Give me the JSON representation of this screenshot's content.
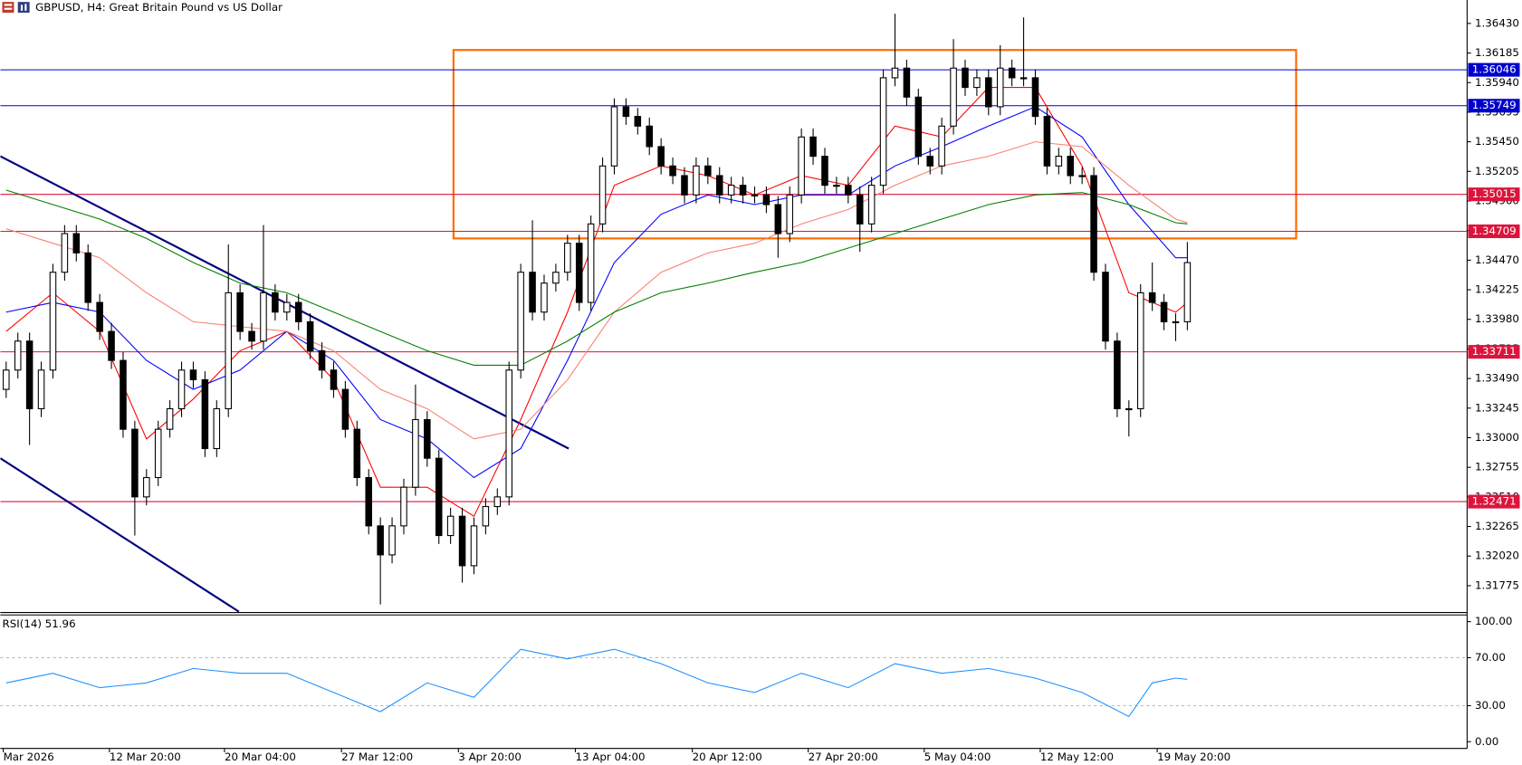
{
  "chart_data": {
    "type": "candlestick",
    "title": "GBPUSD, H4:  Great Britain Pound vs US Dollar",
    "open": [
      1.334,
      1.3356,
      1.338,
      1.3324,
      1.3356,
      1.3437,
      1.3469,
      1.3453,
      1.3412,
      1.3388,
      1.3364,
      1.3307,
      1.3251,
      1.3267,
      1.3307,
      1.3324,
      1.3356,
      1.3348,
      1.3291,
      1.3324,
      1.342,
      1.3388,
      1.338,
      1.342,
      1.3404,
      1.3412,
      1.3396,
      1.3372,
      1.3356,
      1.334,
      1.3307,
      1.3267,
      1.3227,
      1.3203,
      1.3227,
      1.3259,
      1.3315,
      1.3283,
      1.3219,
      1.3235,
      1.3194,
      1.3227,
      1.3243,
      1.3251,
      1.3356,
      1.3437,
      1.3404,
      1.3428,
      1.3437,
      1.3461,
      1.3412,
      1.3477,
      1.3525,
      1.3574,
      1.3566,
      1.3558,
      1.3541,
      1.3525,
      1.3517,
      1.3501,
      1.3525,
      1.3517,
      1.3501,
      1.3509,
      1.3501,
      1.3501,
      1.3493,
      1.3469,
      1.3501,
      1.3549,
      1.3533,
      1.3509,
      1.3509,
      1.3501,
      1.3477,
      1.3509,
      1.3598,
      1.3606,
      1.3582,
      1.3533,
      1.3525,
      1.3558,
      1.3606,
      1.359,
      1.3598,
      1.3574,
      1.3606,
      1.3598,
      1.3598,
      1.3566,
      1.3525,
      1.3533,
      1.3517,
      1.3517,
      1.3437,
      1.338,
      1.3324,
      1.3324,
      1.342,
      1.3412,
      1.3396,
      1.3396
    ],
    "high": [
      1.3363,
      1.3387,
      1.3387,
      1.3363,
      1.3444,
      1.3476,
      1.3476,
      1.346,
      1.3419,
      1.3395,
      1.3371,
      1.3314,
      1.3274,
      1.3314,
      1.3331,
      1.3363,
      1.3363,
      1.3355,
      1.3331,
      1.346,
      1.3427,
      1.3395,
      1.3476,
      1.3427,
      1.3419,
      1.3419,
      1.3403,
      1.3379,
      1.3363,
      1.3347,
      1.3314,
      1.3274,
      1.3234,
      1.3234,
      1.3266,
      1.3344,
      1.3322,
      1.329,
      1.3242,
      1.3242,
      1.3234,
      1.325,
      1.3258,
      1.3363,
      1.3444,
      1.348,
      1.3435,
      1.3444,
      1.3468,
      1.3468,
      1.3484,
      1.3532,
      1.3581,
      1.3581,
      1.3573,
      1.3565,
      1.3548,
      1.3532,
      1.3524,
      1.3532,
      1.3532,
      1.3524,
      1.3516,
      1.3516,
      1.3508,
      1.3508,
      1.35,
      1.3508,
      1.3556,
      1.3556,
      1.354,
      1.3516,
      1.3516,
      1.3508,
      1.3516,
      1.3605,
      1.3651,
      1.3613,
      1.3589,
      1.354,
      1.3565,
      1.363,
      1.3613,
      1.3605,
      1.3605,
      1.3625,
      1.3613,
      1.3648,
      1.3605,
      1.3573,
      1.354,
      1.354,
      1.3524,
      1.3524,
      1.3444,
      1.3387,
      1.3331,
      1.3427,
      1.3445,
      1.3419,
      1.3403,
      1.3462
    ],
    "low": [
      1.3333,
      1.3349,
      1.3294,
      1.3317,
      1.3349,
      1.343,
      1.3446,
      1.3405,
      1.3381,
      1.3357,
      1.33,
      1.3219,
      1.3244,
      1.326,
      1.33,
      1.3317,
      1.3341,
      1.3284,
      1.3284,
      1.3317,
      1.3381,
      1.3373,
      1.3373,
      1.3397,
      1.3397,
      1.3389,
      1.3365,
      1.3349,
      1.3333,
      1.33,
      1.326,
      1.322,
      1.3162,
      1.3196,
      1.322,
      1.3252,
      1.3276,
      1.3212,
      1.3212,
      1.318,
      1.3187,
      1.322,
      1.3236,
      1.3244,
      1.3349,
      1.3397,
      1.3397,
      1.3421,
      1.343,
      1.3405,
      1.3405,
      1.347,
      1.3518,
      1.3559,
      1.3551,
      1.3534,
      1.3518,
      1.351,
      1.3494,
      1.3494,
      1.351,
      1.3494,
      1.3494,
      1.3494,
      1.3494,
      1.3486,
      1.3449,
      1.3462,
      1.3494,
      1.3526,
      1.3502,
      1.3502,
      1.3494,
      1.3454,
      1.347,
      1.3502,
      1.3591,
      1.3575,
      1.3526,
      1.3518,
      1.3518,
      1.3551,
      1.3583,
      1.3583,
      1.3567,
      1.3567,
      1.3591,
      1.3591,
      1.3559,
      1.3518,
      1.3518,
      1.351,
      1.351,
      1.343,
      1.3373,
      1.3317,
      1.3301,
      1.3317,
      1.3405,
      1.3389,
      1.338,
      1.3389
    ],
    "close": [
      1.3356,
      1.338,
      1.3324,
      1.3356,
      1.3437,
      1.3469,
      1.3453,
      1.3412,
      1.3388,
      1.3364,
      1.3307,
      1.3251,
      1.3267,
      1.3307,
      1.3324,
      1.3356,
      1.3348,
      1.3291,
      1.3324,
      1.342,
      1.3388,
      1.338,
      1.342,
      1.3404,
      1.3412,
      1.3396,
      1.3372,
      1.3356,
      1.334,
      1.3307,
      1.3267,
      1.3227,
      1.3203,
      1.3227,
      1.3259,
      1.3315,
      1.3283,
      1.3219,
      1.3235,
      1.3194,
      1.3227,
      1.3243,
      1.3251,
      1.3356,
      1.3437,
      1.3404,
      1.3428,
      1.3437,
      1.3461,
      1.3412,
      1.3477,
      1.3525,
      1.3574,
      1.3566,
      1.3558,
      1.3541,
      1.3525,
      1.3517,
      1.3501,
      1.3525,
      1.3517,
      1.3501,
      1.3509,
      1.3501,
      1.3501,
      1.3493,
      1.3469,
      1.3501,
      1.3549,
      1.3533,
      1.3509,
      1.3509,
      1.3501,
      1.3477,
      1.3509,
      1.3598,
      1.3606,
      1.3582,
      1.3533,
      1.3525,
      1.3558,
      1.3606,
      1.359,
      1.3598,
      1.3574,
      1.3606,
      1.3598,
      1.3598,
      1.3566,
      1.3525,
      1.3533,
      1.3517,
      1.3517,
      1.3437,
      1.338,
      1.3324,
      1.3324,
      1.342,
      1.3412,
      1.3396,
      1.3396,
      1.3445
    ],
    "xlim": [
      -0.5,
      124.92
    ],
    "xticks": [
      {
        "value": -0.25,
        "label": "Mar 2026"
      },
      {
        "value": 8.83,
        "label": "12 Mar 20:00"
      },
      {
        "value": 18.67,
        "label": "20 Mar 04:00"
      },
      {
        "value": 28.67,
        "label": "27 Mar 12:00"
      },
      {
        "value": 38.67,
        "label": "3 Apr 20:00"
      },
      {
        "value": 48.67,
        "label": "13 Apr 04:00"
      },
      {
        "value": 58.67,
        "label": "20 Apr 12:00"
      },
      {
        "value": 68.58,
        "label": "27 Apr 20:00"
      },
      {
        "value": 78.5,
        "label": "5 May 04:00"
      },
      {
        "value": 88.42,
        "label": "12 May 12:00"
      },
      {
        "value": 98.42,
        "label": "19 May 20:00"
      }
    ],
    "ylim": [
      1.31557,
      1.36624
    ],
    "yticks": [
      {
        "value": 1.3643,
        "label": "1.36430"
      },
      1.36185,
      {
        "value": 1.3594,
        "label": "1.35940"
      },
      1.35695,
      {
        "value": 1.3545,
        "label": "1.35450"
      },
      1.35205,
      {
        "value": 1.3496,
        "label": "1.34960"
      },
      1.34715,
      {
        "value": 1.3447,
        "label": "1.34470"
      },
      1.34225,
      {
        "value": 1.3398,
        "label": "1.33980"
      },
      1.33735,
      {
        "value": 1.3349,
        "label": "1.33490"
      },
      1.33245,
      {
        "value": 1.33,
        "label": "1.33000"
      },
      1.32755,
      {
        "value": 1.3251,
        "label": "1.32510"
      },
      1.32265,
      {
        "value": 1.3202,
        "label": "1.32020"
      },
      1.31775
    ],
    "moving_averages": [
      {
        "color": "#ff0000",
        "x": [
          0,
          4,
          8,
          12,
          16,
          20,
          24,
          28,
          32,
          36,
          40,
          44,
          48,
          52,
          56,
          60,
          64,
          68,
          72,
          76,
          80,
          84,
          88,
          92,
          96,
          100,
          101
        ],
        "values": [
          1.3388,
          1.342,
          1.3388,
          1.3299,
          1.3332,
          1.3372,
          1.3388,
          1.3348,
          1.3259,
          1.3259,
          1.3235,
          1.3315,
          1.3404,
          1.3509,
          1.3525,
          1.3517,
          1.3501,
          1.3517,
          1.3509,
          1.3558,
          1.3549,
          1.359,
          1.359,
          1.3525,
          1.342,
          1.3404,
          1.3412
        ]
      },
      {
        "color": "#0000ff",
        "x": [
          0,
          4,
          8,
          12,
          16,
          20,
          24,
          28,
          32,
          36,
          40,
          44,
          48,
          52,
          56,
          60,
          64,
          68,
          72,
          76,
          80,
          84,
          88,
          92,
          96,
          100,
          101
        ],
        "values": [
          1.3404,
          1.3412,
          1.3404,
          1.3364,
          1.334,
          1.3356,
          1.3388,
          1.3364,
          1.3315,
          1.3299,
          1.3267,
          1.3291,
          1.3364,
          1.3445,
          1.3485,
          1.3501,
          1.3493,
          1.3501,
          1.3501,
          1.3525,
          1.3541,
          1.3558,
          1.3574,
          1.3549,
          1.3493,
          1.3449,
          1.3449
        ]
      },
      {
        "color": "#fa8072",
        "x": [
          0,
          4,
          8,
          12,
          16,
          20,
          24,
          28,
          32,
          36,
          40,
          44,
          48,
          52,
          56,
          60,
          64,
          68,
          72,
          76,
          80,
          84,
          88,
          92,
          96,
          100,
          101
        ],
        "values": [
          1.3473,
          1.3461,
          1.3449,
          1.342,
          1.3396,
          1.3392,
          1.3388,
          1.3372,
          1.334,
          1.3324,
          1.3299,
          1.3307,
          1.3348,
          1.3404,
          1.3437,
          1.3453,
          1.3461,
          1.3477,
          1.3489,
          1.3509,
          1.3525,
          1.3533,
          1.3545,
          1.3541,
          1.3509,
          1.3481,
          1.3478
        ]
      },
      {
        "color": "#008000",
        "x": [
          0,
          4,
          8,
          12,
          16,
          20,
          24,
          28,
          32,
          36,
          40,
          44,
          48,
          52,
          56,
          60,
          64,
          68,
          72,
          76,
          80,
          84,
          88,
          92,
          96,
          100,
          101
        ],
        "values": [
          1.3505,
          1.3493,
          1.3481,
          1.3465,
          1.3445,
          1.3428,
          1.342,
          1.3404,
          1.3388,
          1.3372,
          1.336,
          1.336,
          1.338,
          1.3404,
          1.342,
          1.3428,
          1.3437,
          1.3445,
          1.3457,
          1.3469,
          1.3481,
          1.3493,
          1.3501,
          1.3503,
          1.3493,
          1.3478,
          1.3477
        ]
      }
    ],
    "levels": [
      {
        "value": 1.36046,
        "color": "#0000cd"
      },
      {
        "value": 1.35749,
        "color": "#0000cd"
      },
      {
        "value": 1.35015,
        "color": "#dc143c"
      },
      {
        "value": 1.34709,
        "color": "#dc143c"
      },
      {
        "value": 1.33711,
        "color": "#dc143c"
      },
      {
        "value": 1.32471,
        "color": "#dc143c"
      }
    ],
    "trendlines": [
      {
        "color": "#000080",
        "x": [
          -0.5,
          48.1
        ],
        "y": [
          1.3533,
          1.3291
        ]
      },
      {
        "color": "#000080",
        "x": [
          -0.5,
          19.9
        ],
        "y": [
          1.3283,
          1.3156
        ]
      }
    ],
    "zone": {
      "color": "#ff6a00",
      "x": [
        38.25,
        110.3
      ],
      "y": [
        1.3465,
        1.3621
      ]
    },
    "indicator": {
      "type": "line",
      "name": "RSI(14)",
      "color": "#1e90ff",
      "x": [
        0,
        4,
        8,
        12,
        16,
        20,
        24,
        28,
        32,
        36,
        40,
        44,
        48,
        52,
        56,
        60,
        64,
        68,
        72,
        76,
        80,
        84,
        88,
        92,
        96,
        98,
        100,
        101
      ],
      "values": [
        49,
        57,
        45,
        49,
        61,
        57,
        57,
        41,
        25,
        49,
        37,
        77,
        69,
        77,
        65,
        49,
        41,
        57,
        45,
        65,
        57,
        61,
        53,
        41,
        21,
        49,
        53,
        51.96
      ],
      "ylim": [
        -5.6,
        105.6
      ],
      "yticks": [
        {
          "value": 100,
          "label": "100.00"
        },
        {
          "value": 70,
          "label": "70.00"
        },
        {
          "value": 30,
          "label": "30.00"
        },
        {
          "value": 0,
          "label": "0.00"
        }
      ],
      "levels": [
        70,
        30
      ]
    }
  }
}
